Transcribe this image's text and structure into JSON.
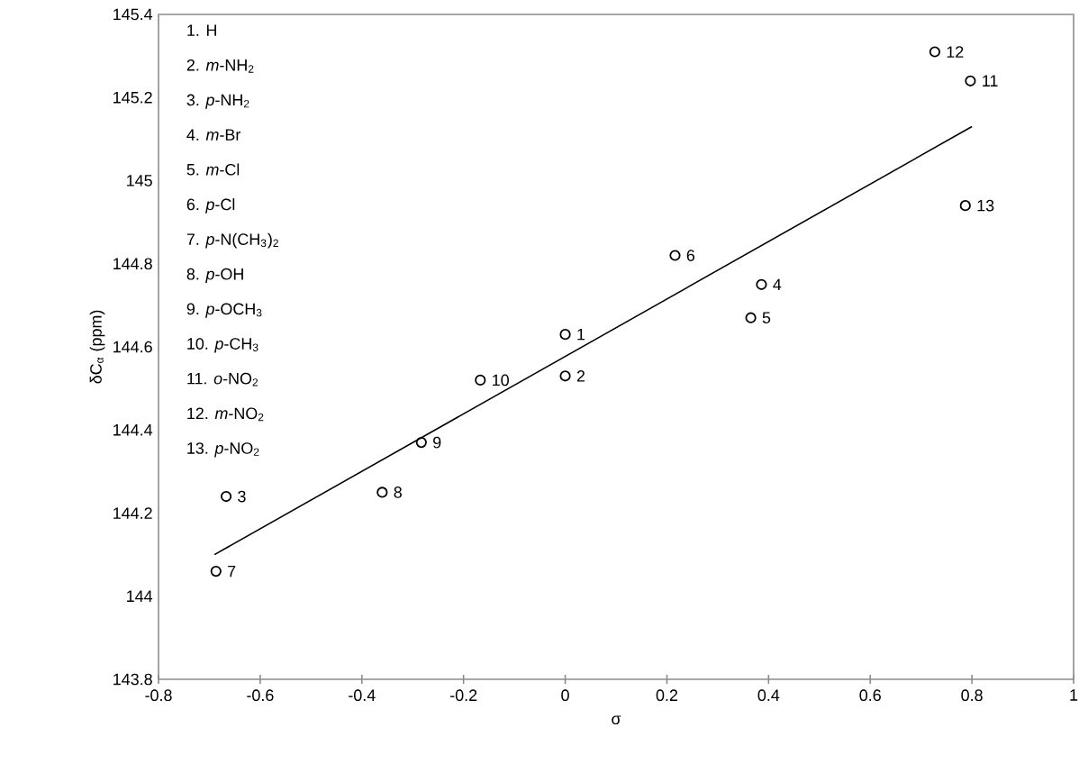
{
  "chart_data": {
    "type": "scatter",
    "xlabel": "σ",
    "ylabel": "δC$_{α}$ (ppm)",
    "xlim": [
      -0.8,
      1
    ],
    "ylim": [
      143.8,
      145.4
    ],
    "xticks": [
      -0.8,
      -0.6,
      -0.4,
      -0.2,
      0,
      0.2,
      0.4,
      0.6,
      0.8,
      1
    ],
    "yticks": [
      143.8,
      144,
      144.2,
      144.4,
      144.6,
      144.8,
      145,
      145.2,
      145.4
    ],
    "grid": false,
    "series": [
      {
        "marker": "circle",
        "color": "#000000",
        "x": [
          0,
          0,
          -0.667,
          0.386,
          0.365,
          0.216,
          -0.687,
          -0.36,
          -0.283,
          -0.167,
          0.797,
          0.727,
          0.787
        ],
        "values": [
          144.63,
          144.53,
          144.24,
          144.75,
          144.67,
          144.82,
          144.06,
          144.25,
          144.37,
          144.52,
          145.24,
          145.31,
          144.94
        ]
      },
      {
        "type": "line",
        "marker": "none",
        "color": "#000000",
        "x": [
          -0.69,
          0.8
        ],
        "values": [
          144.1,
          145.13
        ]
      }
    ],
    "annotations": [
      "1. H",
      "2. *m*-NH$_{2}$",
      "3. *p*-NH$_{2}$",
      "4. *m*-Br",
      "5. *m*-Cl",
      "6. *p*-Cl",
      "7. *p*-N(CH$_{3}$)$_{2}$",
      "8. *p*-OH",
      "9. *p*-OCH$_{3}$",
      "10. *p*-CH$_{3}$",
      "11. *o*-NO$_{2}$",
      "12. *m*-NO$_{2}$",
      "13. *p*-NO$_{2}$",
      {
        "text": "1",
        "x": 0,
        "y": 144.63
      },
      {
        "text": "2",
        "x": 0,
        "y": 144.53
      },
      {
        "text": "3",
        "x": -0.667,
        "y": 144.24
      },
      {
        "text": "4",
        "x": 0.386,
        "y": 144.75
      },
      {
        "text": "5",
        "x": 0.365,
        "y": 144.67
      },
      {
        "text": "6",
        "x": 0.216,
        "y": 144.82
      },
      {
        "text": "7",
        "x": -0.687,
        "y": 144.06
      },
      {
        "text": "8",
        "x": -0.36,
        "y": 144.25
      },
      {
        "text": "9",
        "x": -0.283,
        "y": 144.37
      },
      {
        "text": "10",
        "x": -0.167,
        "y": 144.52
      },
      {
        "text": "11",
        "x": 0.797,
        "y": 145.24
      },
      {
        "text": "12",
        "x": 0.727,
        "y": 145.31
      },
      {
        "text": "13",
        "x": 0.787,
        "y": 144.94
      }
    ]
  }
}
